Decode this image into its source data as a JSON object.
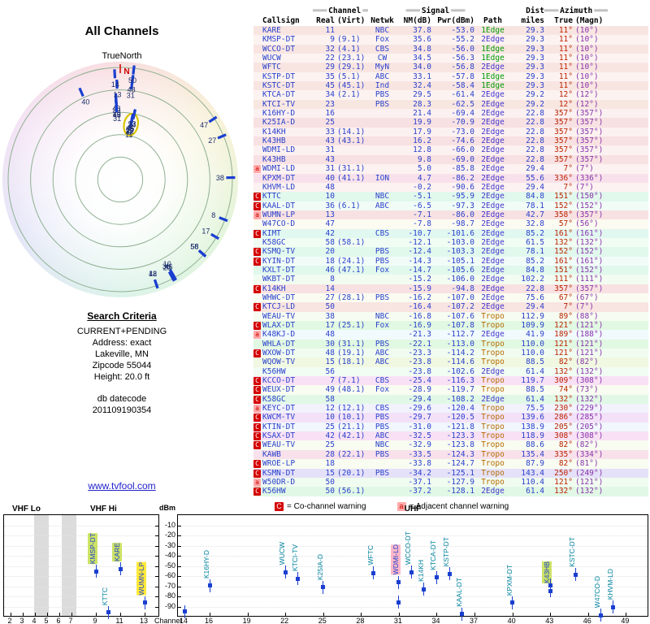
{
  "page": {
    "title": "All Channels",
    "north_label": "TrueNorth"
  },
  "search_criteria": {
    "heading": "Search Criteria",
    "lines": [
      "CURRENT+PENDING",
      "Address: exact",
      "Lakeville, MN",
      "Zipcode 55044",
      "Height: 20.0 ft"
    ],
    "datecode_label": "db datecode",
    "datecode": "201109190354"
  },
  "link": {
    "text": "www.tvfool.com"
  },
  "legend": {
    "co": {
      "symbol": "C",
      "text": "= Co-channel warning"
    },
    "adj": {
      "symbol": "a",
      "text": "= Adjacent channel warning"
    }
  },
  "colors": {
    "marker": "#1a3fd0",
    "co_warning": "#d40000",
    "adj_warning": "#ffaaaa",
    "path_1edge": "#009900",
    "path_2edge": "#4436cc",
    "path_tropo": "#b66a00",
    "azimuth_true": "#bb2200",
    "azimuth_magn": "#8833aa"
  },
  "table": {
    "groups": {
      "channel": "Channel",
      "signal": "Signal",
      "dist": "Dist",
      "azimuth": "Azimuth"
    },
    "columns": {
      "callsign": "Callsign",
      "real": "Real",
      "virt": "(Virt)",
      "netwk": "Netwk",
      "nm": "NM(dB)",
      "pwr": "Pwr(dBm)",
      "path": "Path",
      "miles": "miles",
      "true": "True",
      "magn": "(Magn)"
    },
    "row_fields": [
      "warn",
      "callsign",
      "real",
      "virt",
      "netwk",
      "nm_db",
      "pwr_dbm",
      "path",
      "dist_miles",
      "az_true",
      "az_magn"
    ],
    "rows": [
      [
        "",
        "KARE",
        "11",
        "",
        "NBC",
        "37.8",
        "-53.0",
        "1Edge",
        "29.3",
        "11°",
        "(10°)"
      ],
      [
        "",
        "KMSP-DT",
        "9",
        "(9.1)",
        "Fox",
        "35.6",
        "-55.2",
        "2Edge",
        "29.3",
        "11°",
        "(10°)"
      ],
      [
        "",
        "WCCO-DT",
        "32",
        "(4.1)",
        "CBS",
        "34.8",
        "-56.0",
        "1Edge",
        "29.3",
        "11°",
        "(10°)"
      ],
      [
        "",
        "WUCW",
        "22",
        "(23.1)",
        "CW",
        "34.5",
        "-56.3",
        "1Edge",
        "29.3",
        "11°",
        "(10°)"
      ],
      [
        "",
        "WFTC",
        "29",
        "(29.1)",
        "MyN",
        "34.0",
        "-56.8",
        "2Edge",
        "29.3",
        "11°",
        "(10°)"
      ],
      [
        "",
        "KSTP-DT",
        "35",
        "(5.1)",
        "ABC",
        "33.1",
        "-57.8",
        "1Edge",
        "29.3",
        "11°",
        "(10°)"
      ],
      [
        "",
        "KSTC-DT",
        "45",
        "(45.1)",
        "Ind",
        "32.4",
        "-58.4",
        "1Edge",
        "29.3",
        "11°",
        "(10°)"
      ],
      [
        "",
        "KTCA-DT",
        "34",
        "(2.1)",
        "PBS",
        "29.5",
        "-61.4",
        "2Edge",
        "29.2",
        "12°",
        "(12°)"
      ],
      [
        "",
        "KTCI-TV",
        "23",
        "",
        "PBS",
        "28.3",
        "-62.5",
        "2Edge",
        "29.2",
        "12°",
        "(12°)"
      ],
      [
        "",
        "K16HY-D",
        "16",
        "",
        "",
        "21.4",
        "-69.4",
        "2Edge",
        "22.8",
        "357°",
        "(357°)"
      ],
      [
        "",
        "K25IA-D",
        "25",
        "",
        "",
        "19.9",
        "-70.9",
        "2Edge",
        "22.8",
        "357°",
        "(357°)"
      ],
      [
        "",
        "K14KH",
        "33",
        "(14.1)",
        "",
        "17.9",
        "-73.0",
        "2Edge",
        "22.8",
        "357°",
        "(357°)"
      ],
      [
        "",
        "K43HB",
        "43",
        "(43.1)",
        "",
        "16.2",
        "-74.6",
        "2Edge",
        "22.8",
        "357°",
        "(357°)"
      ],
      [
        "",
        "WDMI-LD",
        "31",
        "",
        "",
        "12.8",
        "-66.0",
        "2Edge",
        "22.8",
        "357°",
        "(357°)"
      ],
      [
        "",
        "K43HB",
        "43",
        "",
        "",
        "9.8",
        "-69.0",
        "2Edge",
        "22.8",
        "357°",
        "(357°)"
      ],
      [
        "A",
        "WDMI-LD",
        "31",
        "(31.1)",
        "",
        "5.0",
        "-85.8",
        "2Edge",
        "29.4",
        "7°",
        "(7°)"
      ],
      [
        "",
        "KPXM-DT",
        "40",
        "(41.1)",
        "ION",
        "4.7",
        "-86.2",
        "2Edge",
        "55.6",
        "336°",
        "(336°)"
      ],
      [
        "",
        "KHVM-LD",
        "48",
        "",
        "",
        "-0.2",
        "-90.6",
        "2Edge",
        "29.4",
        "7°",
        "(7°)"
      ],
      [
        "C",
        "KTTC",
        "10",
        "",
        "NBC",
        "-5.1",
        "-95.9",
        "2Edge",
        "84.8",
        "151°",
        "(150°)"
      ],
      [
        "C",
        "KAAL-DT",
        "36",
        "(6.1)",
        "ABC",
        "-6.5",
        "-97.3",
        "2Edge",
        "78.1",
        "152°",
        "(152°)"
      ],
      [
        "A",
        "WUMN-LP",
        "13",
        "",
        "",
        "-7.1",
        "-86.0",
        "2Edge",
        "42.7",
        "358°",
        "(357°)"
      ],
      [
        "",
        "W47CO-D",
        "47",
        "",
        "",
        "-7.8",
        "-98.7",
        "2Edge",
        "32.8",
        "57°",
        "(56°)"
      ],
      [
        "C",
        "KIMT",
        "42",
        "",
        "CBS",
        "-10.7",
        "-101.6",
        "2Edge",
        "85.2",
        "161°",
        "(161°)"
      ],
      [
        "",
        "K58GC",
        "58",
        "(58.1)",
        "",
        "-12.1",
        "-103.0",
        "2Edge",
        "61.5",
        "132°",
        "(132°)"
      ],
      [
        "C",
        "KSMQ-TV",
        "20",
        "",
        "PBS",
        "-12.4",
        "-103.3",
        "2Edge",
        "78.1",
        "152°",
        "(152°)"
      ],
      [
        "C",
        "KYIN-DT",
        "18",
        "(24.1)",
        "PBS",
        "-14.3",
        "-105.1",
        "2Edge",
        "85.2",
        "161°",
        "(161°)"
      ],
      [
        "",
        "KXLT-DT",
        "46",
        "(47.1)",
        "Fox",
        "-14.7",
        "-105.6",
        "2Edge",
        "84.8",
        "151°",
        "(152°)"
      ],
      [
        "",
        "WKBT-DT",
        "8",
        "",
        "",
        "-15.2",
        "-106.0",
        "2Edge",
        "102.2",
        "111°",
        "(111°)"
      ],
      [
        "C",
        "K14KH",
        "14",
        "",
        "",
        "-15.9",
        "-94.8",
        "2Edge",
        "22.8",
        "357°",
        "(357°)"
      ],
      [
        "",
        "WHWC-DT",
        "27",
        "(28.1)",
        "PBS",
        "-16.2",
        "-107.0",
        "2Edge",
        "75.6",
        "67°",
        "(67°)"
      ],
      [
        "C",
        "KTCJ-LD",
        "50",
        "",
        "",
        "-16.4",
        "-107.2",
        "2Edge",
        "29.4",
        "7°",
        "(7°)"
      ],
      [
        "",
        "WEAU-TV",
        "38",
        "",
        "NBC",
        "-16.8",
        "-107.6",
        "Tropo",
        "112.9",
        "89°",
        "(88°)"
      ],
      [
        "C",
        "WLAX-DT",
        "17",
        "(25.1)",
        "Fox",
        "-16.9",
        "-107.8",
        "Tropo",
        "109.9",
        "121°",
        "(121°)"
      ],
      [
        "A",
        "K48KJ-D",
        "48",
        "",
        "",
        "-21.3",
        "-112.7",
        "2Edge",
        "41.9",
        "189°",
        "(188°)"
      ],
      [
        "",
        "WHLA-DT",
        "30",
        "(31.1)",
        "PBS",
        "-22.1",
        "-113.0",
        "Tropo",
        "110.0",
        "121°",
        "(121°)"
      ],
      [
        "C",
        "WXOW-DT",
        "48",
        "(19.1)",
        "ABC",
        "-23.3",
        "-114.2",
        "Tropo",
        "110.0",
        "121°",
        "(121°)"
      ],
      [
        "",
        "WQOW-TV",
        "15",
        "(18.1)",
        "ABC",
        "-23.8",
        "-114.6",
        "Tropo",
        "88.5",
        "82°",
        "(82°)"
      ],
      [
        "",
        "K56HW",
        "56",
        "",
        "",
        "-23.8",
        "-102.6",
        "2Edge",
        "61.4",
        "132°",
        "(132°)"
      ],
      [
        "C",
        "KCCO-DT",
        "7",
        "(7.1)",
        "CBS",
        "-25.4",
        "-116.3",
        "Tropo",
        "119.7",
        "309°",
        "(308°)"
      ],
      [
        "C",
        "WEUX-DT",
        "49",
        "(48.1)",
        "Fox",
        "-28.9",
        "-119.7",
        "Tropo",
        "88.5",
        "74°",
        "(73°)"
      ],
      [
        "C",
        "K58GC",
        "58",
        "",
        "",
        "-29.4",
        "-108.2",
        "2Edge",
        "61.4",
        "132°",
        "(132°)"
      ],
      [
        "A",
        "KEYC-DT",
        "12",
        "(12.1)",
        "CBS",
        "-29.6",
        "-120.4",
        "Tropo",
        "75.5",
        "230°",
        "(229°)"
      ],
      [
        "C",
        "KWCM-TV",
        "10",
        "(10.1)",
        "PBS",
        "-29.7",
        "-120.5",
        "Tropo",
        "139.6",
        "286°",
        "(285°)"
      ],
      [
        "C",
        "KTIN-DT",
        "25",
        "(21.1)",
        "PBS",
        "-31.0",
        "-121.8",
        "Tropo",
        "138.9",
        "205°",
        "(205°)"
      ],
      [
        "C",
        "KSAX-DT",
        "42",
        "(42.1)",
        "ABC",
        "-32.5",
        "-123.3",
        "Tropo",
        "118.9",
        "308°",
        "(308°)"
      ],
      [
        "C",
        "WEAU-TV",
        "25",
        "",
        "NBC",
        "-32.9",
        "-123.8",
        "Tropo",
        "88.6",
        "82°",
        "(82°)"
      ],
      [
        "",
        "KAWB",
        "28",
        "(22.1)",
        "PBS",
        "-33.5",
        "-124.3",
        "Tropo",
        "135.4",
        "335°",
        "(334°)"
      ],
      [
        "C",
        "WROE-LP",
        "18",
        "",
        "",
        "-33.8",
        "-124.7",
        "Tropo",
        "87.9",
        "82°",
        "(81°)"
      ],
      [
        "C",
        "KSMN-DT",
        "15",
        "(20.1)",
        "PBS",
        "-34.2",
        "-125.1",
        "Tropo",
        "143.4",
        "250°",
        "(249°)"
      ],
      [
        "A",
        "W50DR-D",
        "50",
        "",
        "",
        "-37.1",
        "-127.9",
        "Tropo",
        "110.4",
        "121°",
        "(121°)"
      ],
      [
        "C",
        "K56HW",
        "50",
        "(56.1)",
        "",
        "-37.2",
        "-128.1",
        "2Edge",
        "61.4",
        "132°",
        "(132°)"
      ]
    ]
  },
  "chart_data": [
    {
      "type": "scatter",
      "polar": true,
      "title": "All Channels",
      "north_label": "N",
      "rings": [
        0.2,
        0.4,
        0.6,
        0.8,
        1.0
      ],
      "highlight_channel": 11,
      "station_fields": [
        "channel",
        "azimuth_deg",
        "pwr_dbm"
      ],
      "stations": [
        [
          11,
          11,
          -53.0
        ],
        [
          9,
          11,
          -55.2
        ],
        [
          32,
          11,
          -56.0
        ],
        [
          22,
          11,
          -56.3
        ],
        [
          29,
          11,
          -56.8
        ],
        [
          35,
          11,
          -57.8
        ],
        [
          45,
          11,
          -58.4
        ],
        [
          34,
          12,
          -61.4
        ],
        [
          23,
          12,
          -62.5
        ],
        [
          16,
          357,
          -69.4
        ],
        [
          25,
          357,
          -70.9
        ],
        [
          33,
          357,
          -73.0
        ],
        [
          43,
          357,
          -74.6
        ],
        [
          31,
          357,
          -66.0
        ],
        [
          43,
          357,
          -69.0
        ],
        [
          31,
          7,
          -85.8
        ],
        [
          40,
          336,
          -86.2
        ],
        [
          48,
          7,
          -90.6
        ],
        [
          10,
          151,
          -95.9
        ],
        [
          36,
          152,
          -97.3
        ],
        [
          13,
          358,
          -86.0
        ],
        [
          47,
          57,
          -98.7
        ],
        [
          42,
          161,
          -101.6
        ],
        [
          58,
          132,
          -103.0
        ],
        [
          20,
          152,
          -103.3
        ],
        [
          18,
          161,
          -105.1
        ],
        [
          46,
          151,
          -105.6
        ],
        [
          8,
          111,
          -106.0
        ],
        [
          14,
          357,
          -94.8
        ],
        [
          27,
          67,
          -107.0
        ],
        [
          50,
          7,
          -107.2
        ],
        [
          38,
          89,
          -107.6
        ],
        [
          17,
          121,
          -107.8
        ],
        [
          56,
          132,
          -102.6
        ],
        [
          58,
          132,
          -108.2
        ]
      ]
    },
    {
      "type": "scatter",
      "ylabel": "dBm",
      "xlabel": "Channel",
      "yticks": [
        -10,
        -20,
        -30,
        -40,
        -50,
        -60,
        -70,
        -80,
        -90
      ],
      "station_fields": [
        "callsign",
        "channel",
        "pwr_dbm",
        "highlight"
      ],
      "panels": [
        {
          "name": "vhf",
          "labels": [
            "VHF Lo",
            "VHF Hi"
          ],
          "ch_min": 2,
          "ch_max": 13.6,
          "xticks": [
            2,
            3,
            4,
            5,
            6,
            7,
            9,
            11,
            13
          ],
          "bands": [
            [
              3.9,
              5.1
            ],
            [
              6.2,
              7.4
            ]
          ],
          "stations": [
            [
              "KMSP-DT",
              9,
              -55.2,
              "g"
            ],
            [
              "KTTC",
              10,
              -95.9,
              ""
            ],
            [
              "KARE",
              11,
              -53.0,
              "g"
            ],
            [
              "WUMN-LP",
              13,
              -86.0,
              "y"
            ]
          ]
        },
        {
          "name": "uhf",
          "labels": [
            "UHF"
          ],
          "ch_min": 14,
          "ch_max": 50.2,
          "xticks": [
            14,
            16,
            19,
            22,
            25,
            28,
            31,
            34,
            37,
            40,
            43,
            46,
            49
          ],
          "bands": [],
          "stations": [
            [
              "",
              14,
              -94.8,
              ""
            ],
            [
              "K16HY-D",
              16,
              -69.4,
              ""
            ],
            [
              "WUCW",
              22,
              -56.3,
              ""
            ],
            [
              "KTCI-TV",
              23,
              -62.5,
              ""
            ],
            [
              "K25IA-D",
              25,
              -70.9,
              ""
            ],
            [
              "WFTC",
              29,
              -56.8,
              ""
            ],
            [
              "WDMI-LD",
              31,
              -66.0,
              "p"
            ],
            [
              "",
              31,
              -85.8,
              ""
            ],
            [
              "WCCO-DT",
              32,
              -56.0,
              ""
            ],
            [
              "K14KH",
              33,
              -73.0,
              ""
            ],
            [
              "KTCA-DT",
              34,
              -61.4,
              ""
            ],
            [
              "KSTP-DT",
              35,
              -57.8,
              ""
            ],
            [
              "KAAL-DT",
              36,
              -97.3,
              ""
            ],
            [
              "KPXM-DT",
              40,
              -86.2,
              ""
            ],
            [
              "K43HB",
              43,
              -74.6,
              "g"
            ],
            [
              "",
              43,
              -69.0,
              ""
            ],
            [
              "KSTC-DT",
              45,
              -58.4,
              ""
            ],
            [
              "W47CO-D",
              47,
              -98.7,
              ""
            ],
            [
              "KHVM-LD",
              48,
              -90.6,
              ""
            ]
          ]
        }
      ]
    }
  ]
}
